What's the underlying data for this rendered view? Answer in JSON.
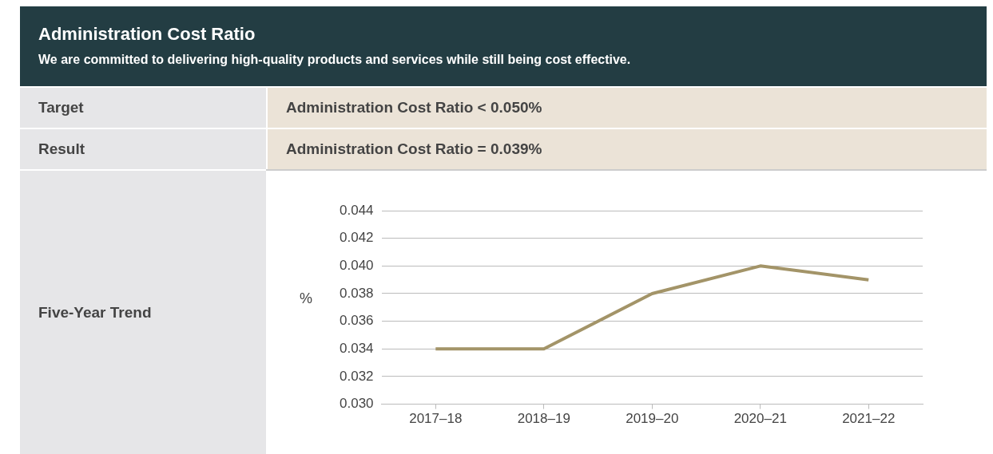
{
  "chart_data": {
    "type": "line",
    "title": "Administration Cost Ratio",
    "subtitle": "We are committed to delivering high-quality products and services while still being cost effective.",
    "annotations": [
      "Target",
      "Administration Cost Ratio < 0.050%",
      "Result",
      "Administration Cost Ratio = 0.039%",
      "Five-Year Trend"
    ],
    "ylabel": "%",
    "categories": [
      "2017–18",
      "2018–19",
      "2019–20",
      "2020–21",
      "2021–22"
    ],
    "series": [
      {
        "color": "#a39468",
        "values": [
          0.034,
          0.034,
          0.038,
          0.04,
          0.039
        ]
      }
    ],
    "ylim": [
      0.03,
      0.044
    ],
    "yticks": [
      {
        "value": 0.03,
        "label": "0.030"
      },
      0.032,
      0.034,
      0.036,
      0.038,
      {
        "value": 0.04,
        "label": "0.040"
      },
      0.042,
      0.044
    ],
    "grid": "y",
    "legend": false,
    "marker": "none",
    "line_style": "solid"
  }
}
